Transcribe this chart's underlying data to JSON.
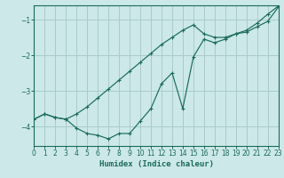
{
  "xlabel": "Humidex (Indice chaleur)",
  "bg_color": "#cce8e8",
  "line_color": "#1a6b5a",
  "grid_color": "#aacccc",
  "xlim": [
    0,
    23
  ],
  "ylim": [
    -4.55,
    -0.6
  ],
  "yticks": [
    -4,
    -3,
    -2,
    -1
  ],
  "xticks": [
    0,
    1,
    2,
    3,
    4,
    5,
    6,
    7,
    8,
    9,
    10,
    11,
    12,
    13,
    14,
    15,
    16,
    17,
    18,
    19,
    20,
    21,
    22,
    23
  ],
  "line1_x": [
    0,
    1,
    2,
    3,
    4,
    5,
    6,
    7,
    8,
    9,
    10,
    11,
    12,
    13,
    14,
    15,
    16,
    17,
    18,
    19,
    20,
    21,
    22,
    23
  ],
  "line1_y": [
    -3.8,
    -3.65,
    -3.75,
    -3.8,
    -3.65,
    -3.45,
    -3.2,
    -2.95,
    -2.7,
    -2.45,
    -2.2,
    -1.95,
    -1.7,
    -1.5,
    -1.3,
    -1.15,
    -1.4,
    -1.5,
    -1.5,
    -1.4,
    -1.35,
    -1.2,
    -1.05,
    -0.65
  ],
  "line2_x": [
    0,
    1,
    2,
    3,
    4,
    5,
    6,
    7,
    8,
    9,
    10,
    11,
    12,
    13,
    14,
    15,
    16,
    17,
    18,
    19,
    20,
    21,
    22,
    23
  ],
  "line2_y": [
    -3.8,
    -3.65,
    -3.75,
    -3.8,
    -4.05,
    -4.2,
    -4.25,
    -4.35,
    -4.2,
    -4.2,
    -3.85,
    -3.5,
    -2.8,
    -2.5,
    -3.5,
    -2.05,
    -1.55,
    -1.65,
    -1.55,
    -1.4,
    -1.3,
    -1.1,
    -0.85,
    -0.62
  ]
}
